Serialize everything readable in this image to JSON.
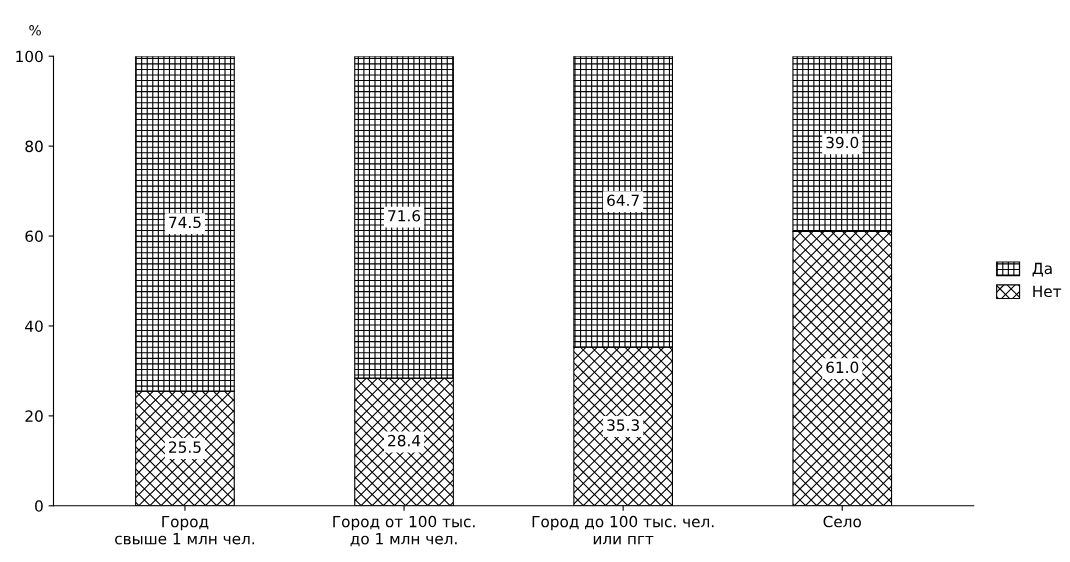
{
  "chart_data": {
    "type": "bar",
    "stacked": true,
    "ylabel": "%",
    "categories": [
      "Город\nсвыше 1 млн чел.",
      "Город от 100 тыс.\nдо 1 млн чел.",
      "Город до 100 тыс. чел.\nили пгт",
      "Село"
    ],
    "series": [
      {
        "name": "Нет",
        "color": "#000000",
        "values": [
          25.5,
          28.4,
          35.3,
          61.0
        ],
        "value_labels": [
          "25.5",
          "28.4",
          "35.3",
          "61.0"
        ]
      },
      {
        "name": "Да",
        "color": "#000000",
        "values": [
          74.5,
          71.6,
          64.7,
          39.0
        ],
        "value_labels": [
          "74.5",
          "71.6",
          "64.7",
          "39.0"
        ]
      }
    ],
    "ylim": [
      0,
      100
    ],
    "yticks": [
      0,
      20,
      40,
      60,
      80,
      100
    ],
    "grid": false,
    "legend": "right"
  }
}
